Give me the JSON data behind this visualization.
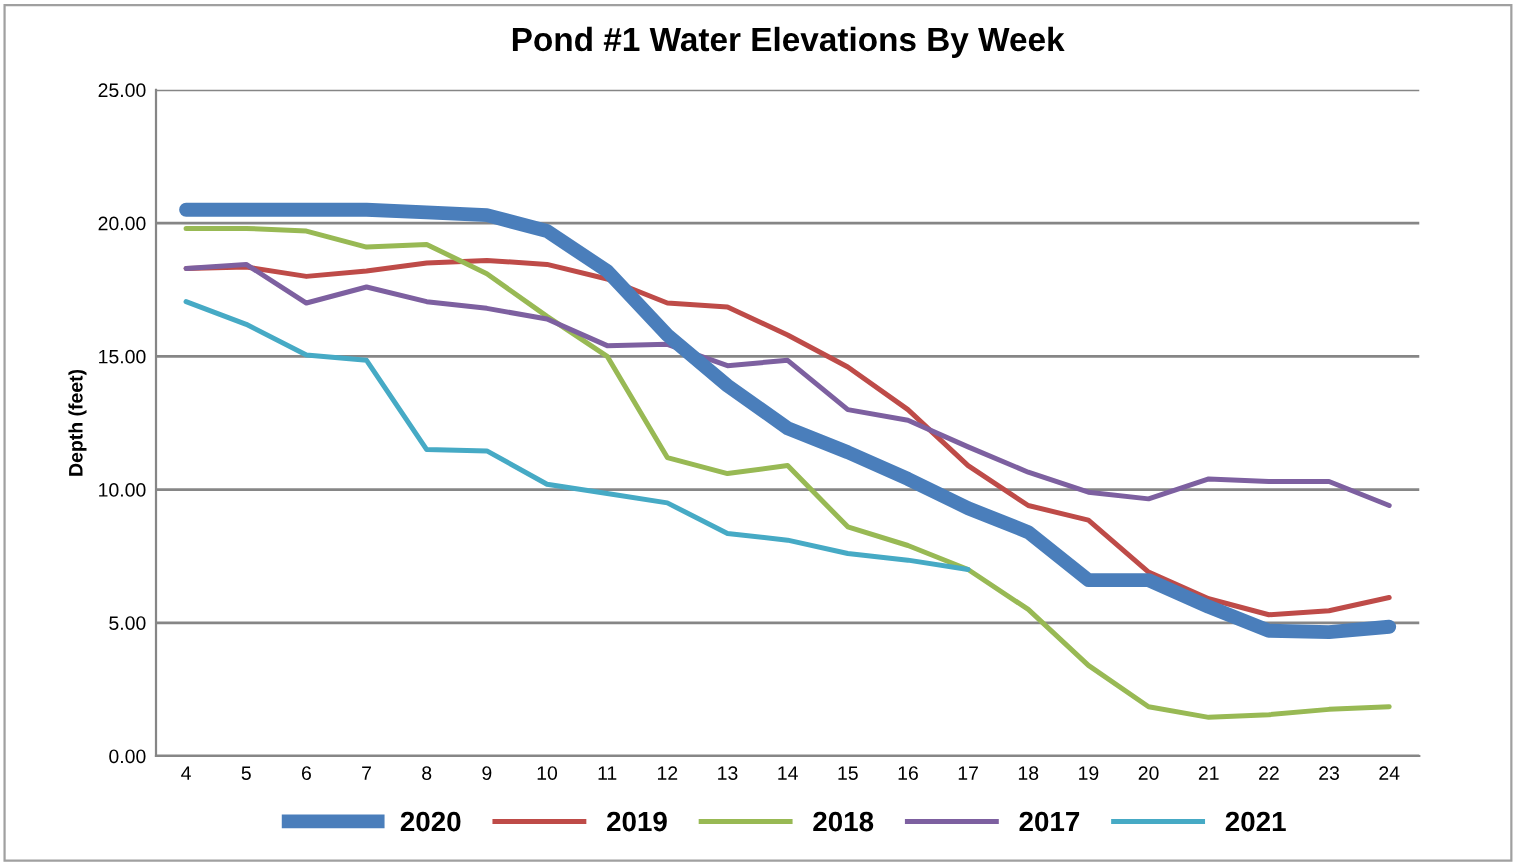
{
  "chart_data": {
    "type": "line",
    "title": "Pond #1 Water Elevations By Week",
    "ylabel": "Depth (feet)",
    "categories": [
      "4",
      "5",
      "6",
      "7",
      "8",
      "9",
      "10",
      "11",
      "12",
      "13",
      "14",
      "15",
      "16",
      "17",
      "18",
      "19",
      "20",
      "21",
      "22",
      "23",
      "24"
    ],
    "ylim": [
      0,
      25
    ],
    "yticks": [
      {
        "value": 0,
        "label": "0.00"
      },
      {
        "value": 5,
        "label": "5.00"
      },
      {
        "value": 10,
        "label": "10.00"
      },
      {
        "value": 15,
        "label": "15.00"
      },
      {
        "value": 20,
        "label": "20.00"
      },
      {
        "value": 25,
        "label": "25.00"
      }
    ],
    "grid": "y",
    "legend": "bottom",
    "marker": "none",
    "line_style": "solid",
    "series": [
      {
        "name": "2020",
        "color": "#4a7ebb",
        "values": [
          20.5,
          20.5,
          20.5,
          20.5,
          20.4,
          20.3,
          19.7,
          18.2,
          15.8,
          13.9,
          12.3,
          11.4,
          10.4,
          9.3,
          8.4,
          6.6,
          6.6,
          5.6,
          4.7,
          4.65,
          4.85
        ]
      },
      {
        "name": "2019",
        "color": "#be4b48",
        "values": [
          18.3,
          18.35,
          18.0,
          18.2,
          18.5,
          18.6,
          18.45,
          17.9,
          17.0,
          16.85,
          15.8,
          14.6,
          13.0,
          10.9,
          9.4,
          8.85,
          6.9,
          5.9,
          5.3,
          5.45,
          5.95
        ]
      },
      {
        "name": "2018",
        "color": "#98b954",
        "values": [
          19.8,
          19.8,
          19.7,
          19.1,
          19.2,
          18.1,
          16.5,
          15.0,
          11.2,
          10.6,
          10.9,
          8.6,
          7.9,
          7.0,
          5.5,
          3.4,
          1.85,
          1.45,
          1.55,
          1.75,
          1.85
        ]
      },
      {
        "name": "2017",
        "color": "#7d60a0",
        "values": [
          18.3,
          18.45,
          17.0,
          17.6,
          17.05,
          16.8,
          16.4,
          15.4,
          15.45,
          14.65,
          14.85,
          13.0,
          12.6,
          11.6,
          10.65,
          9.9,
          9.65,
          10.4,
          10.3,
          10.3,
          9.4
        ]
      },
      {
        "name": "2021",
        "color": "#46aac5",
        "values": [
          17.05,
          16.2,
          15.05,
          14.85,
          11.5,
          11.45,
          10.2,
          9.85,
          9.5,
          8.35,
          8.1,
          7.6,
          7.35,
          7.0,
          null,
          null,
          null,
          null,
          null,
          null,
          null
        ]
      }
    ]
  }
}
